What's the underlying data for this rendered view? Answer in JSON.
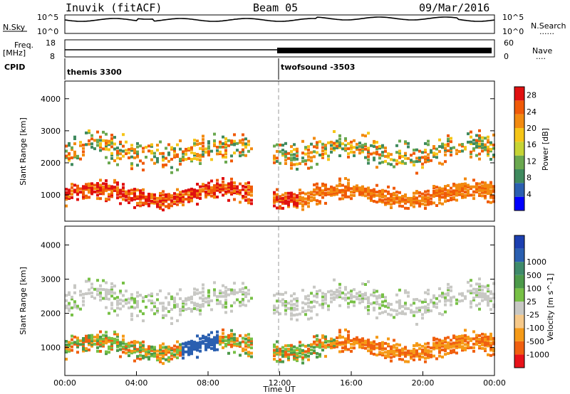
{
  "header": {
    "station": "Inuvik (fitACF)",
    "beam": "Beam 05",
    "date": "09/Mar/2016"
  },
  "noise_panel": {
    "left_label": "N.Sky",
    "right_label": "N.Search",
    "right_dots": "......",
    "ticks_top": "10^5",
    "ticks_bottom": "10^0"
  },
  "freq_panel": {
    "left_label_1": "Freq.",
    "left_label_2": "[MHz]",
    "left_ticks": [
      "18",
      "8"
    ],
    "right_label": "Nave",
    "right_dots": "....",
    "right_ticks": [
      "60",
      "0"
    ]
  },
  "cpid": {
    "label": "CPID",
    "segments": [
      {
        "name": "themis 3300",
        "start_hour": 0
      },
      {
        "name": "twofsound -3503",
        "start_hour": 12
      }
    ]
  },
  "colors": {
    "power": [
      "#0000ff",
      "#2b5fb0",
      "#3f8a5e",
      "#6aa84f",
      "#c6d434",
      "#f5c518",
      "#f28a10",
      "#f05a08",
      "#e01010"
    ],
    "velocity": [
      "#e8121a",
      "#f06010",
      "#f59a18",
      "#f6c98a",
      "#c8c8c4",
      "#77c046",
      "#4c9a4a",
      "#3e8a6a",
      "#2a5fb0",
      "#1c3fb0"
    ]
  },
  "chart_data": [
    {
      "type": "heatmap",
      "name": "power",
      "x_ticks": [
        "00:00",
        "04:00",
        "08:00",
        "12:00",
        "16:00",
        "20:00",
        "00:00"
      ],
      "x_range_hours": [
        0,
        24
      ],
      "ylabel": "Slant Range [km]",
      "y_ticks": [
        1000,
        2000,
        3000,
        4000
      ],
      "ylim": [
        180,
        4550
      ],
      "colorbar_label": "Power [dB]",
      "colorbar_ticks": [
        4,
        8,
        12,
        16,
        20,
        24,
        28
      ],
      "colorbar_range": [
        0,
        30
      ]
    },
    {
      "type": "heatmap",
      "name": "velocity",
      "xlabel": "Time UT",
      "x_ticks": [
        "00:00",
        "04:00",
        "08:00",
        "12:00",
        "16:00",
        "20:00",
        "00:00"
      ],
      "x_range_hours": [
        0,
        24
      ],
      "ylabel": "Slant Range [km]",
      "y_ticks": [
        1000,
        2000,
        3000,
        4000
      ],
      "ylim": [
        180,
        4550
      ],
      "colorbar_label": "Velocity [m s^-1]",
      "colorbar_ticks": [
        -1000,
        -500,
        -100,
        -25,
        25,
        100,
        500,
        1000
      ]
    }
  ]
}
